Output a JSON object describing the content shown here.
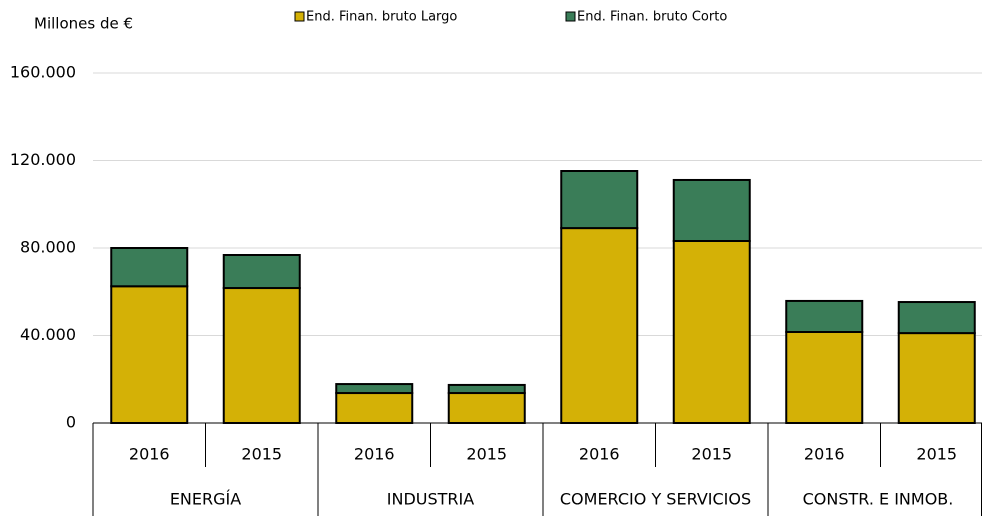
{
  "chart_data": {
    "type": "stacked_bar",
    "y_label": "Millones de €",
    "categories": [
      "2016",
      "2015",
      "2016",
      "2015",
      "2016",
      "2015",
      "2016",
      "2015"
    ],
    "groups": [
      "ENERGÍA",
      "INDUSTRIA",
      "COMERCIO Y SERVICIOS",
      "CONSTR. E INMOB."
    ],
    "series": [
      {
        "name": "End. Finan. bruto Largo",
        "color": "#d4b106",
        "values": [
          62500,
          61700,
          13700,
          13700,
          89100,
          83200,
          41600,
          41100
        ]
      },
      {
        "name": "End. Finan. bruto  Corto",
        "color": "#3a7d58",
        "values": [
          17500,
          15100,
          4100,
          3700,
          26100,
          27900,
          14200,
          14200
        ]
      }
    ],
    "ylim": [
      0,
      160000
    ],
    "yticks": [
      0,
      {
        "value": 40000,
        "label": "40.000"
      },
      {
        "value": 80000,
        "label": "80.000"
      },
      {
        "value": 120000,
        "label": "120.000"
      },
      {
        "value": 160000,
        "label": "160.000"
      }
    ],
    "grid": true
  }
}
